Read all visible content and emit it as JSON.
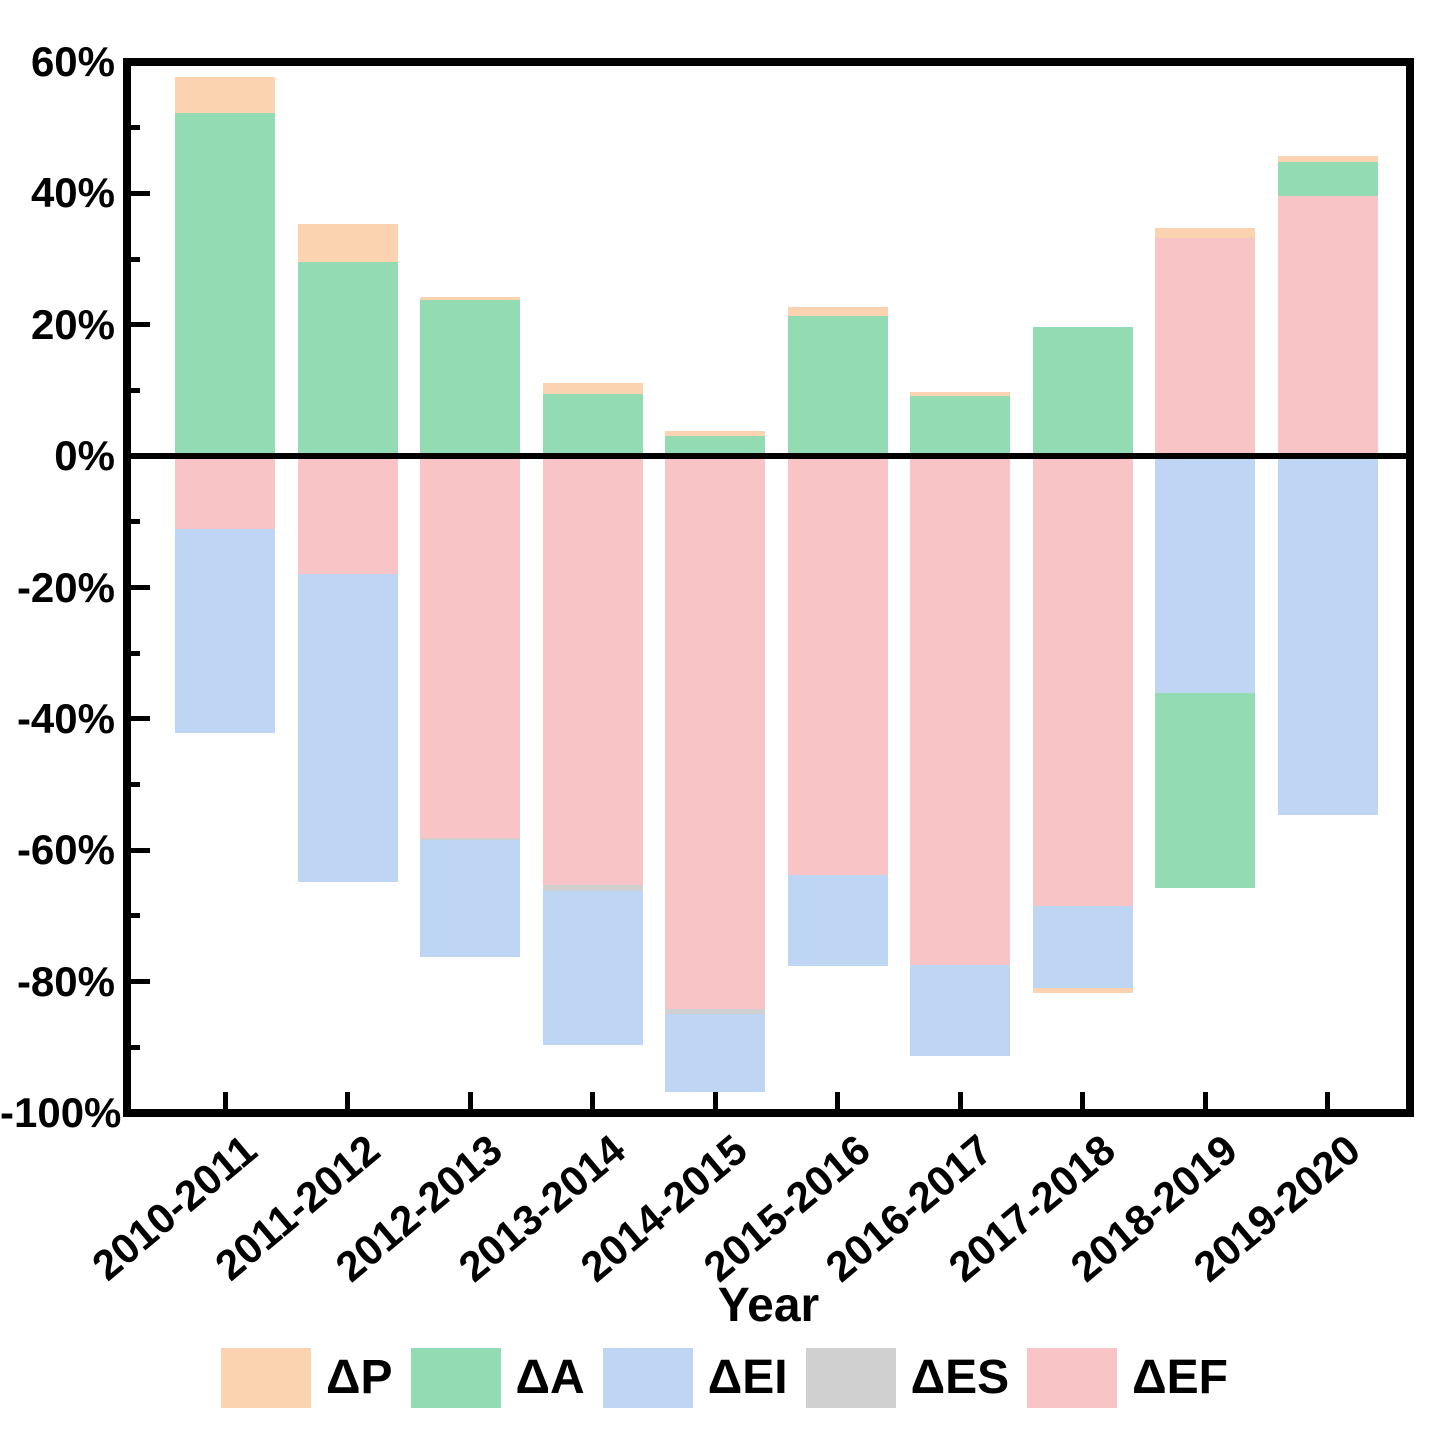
{
  "chart_data": {
    "type": "bar",
    "stacked": true,
    "title": "",
    "xlabel": "Year",
    "ylabel": "",
    "categories": [
      "2010-2011",
      "2011-2012",
      "2012-2013",
      "2013-2014",
      "2014-2015",
      "2015-2016",
      "2016-2017",
      "2017-2018",
      "2018-2019",
      "2019-2020"
    ],
    "series": [
      {
        "name": "ΔP",
        "color": "#FCD3B1",
        "values": [
          5.4,
          5.8,
          0.5,
          1.8,
          0.9,
          1.4,
          0.5,
          -0.7,
          1.5,
          0.9
        ]
      },
      {
        "name": "ΔA",
        "color": "#93DBB3",
        "values": [
          52.3,
          29.6,
          23.7,
          9.4,
          3.0,
          21.3,
          9.2,
          19.6,
          -29.8,
          5.2
        ]
      },
      {
        "name": "ΔEI",
        "color": "#BED6F3",
        "values": [
          -31.0,
          -46.9,
          -17.8,
          -23.4,
          -11.9,
          -13.8,
          -13.8,
          -12.5,
          -36.0,
          -54.7
        ]
      },
      {
        "name": "ΔES",
        "color": "#D0D0D0",
        "values": [
          0,
          0,
          -0.3,
          -0.9,
          -0.8,
          0,
          0,
          0,
          0,
          0
        ]
      },
      {
        "name": "ΔEF",
        "color": "#F8C4C5",
        "values": [
          -11.1,
          -18.0,
          -58.1,
          -65.3,
          -84.1,
          -63.8,
          -77.5,
          -68.5,
          33.2,
          39.6
        ]
      }
    ],
    "stack_order": [
      "ΔEF",
      "ΔES",
      "ΔEI",
      "ΔA",
      "ΔP"
    ],
    "ylim": [
      -100,
      60
    ],
    "y_major_step": 20,
    "y_minor_step": 10,
    "y_tick_labels": [
      "60%",
      "40%",
      "20%",
      "0%",
      "-20%",
      "-40%",
      "-60%",
      "-80%",
      "-100%"
    ],
    "grid": false,
    "legend_position": "bottom"
  }
}
